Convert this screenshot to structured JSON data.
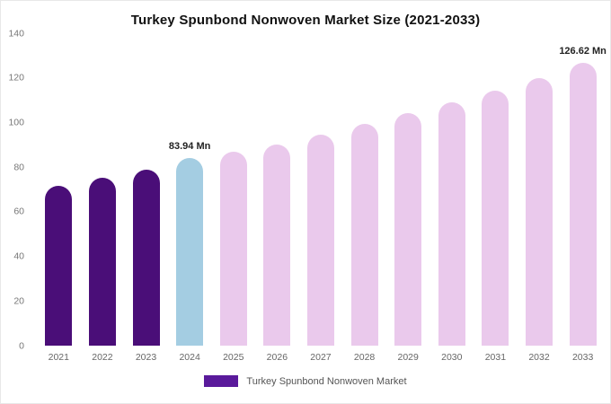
{
  "chart_data": {
    "type": "bar",
    "title": "Turkey Spunbond Nonwoven Market Size (2021-2033)",
    "categories": [
      "2021",
      "2022",
      "2023",
      "2024",
      "2025",
      "2026",
      "2027",
      "2028",
      "2029",
      "2030",
      "2031",
      "2032",
      "2033"
    ],
    "values": [
      71.8,
      75.2,
      78.9,
      83.94,
      86.9,
      90.3,
      94.6,
      99.2,
      104.2,
      109.1,
      114.3,
      119.9,
      126.62
    ],
    "point_labels": [
      "",
      "",
      "",
      "83.94 Mn",
      "",
      "",
      "",
      "",
      "",
      "",
      "",
      "",
      "126.62 Mn"
    ],
    "bar_colors": [
      "#4a0e78",
      "#4a0e78",
      "#4a0e78",
      "#a4cde2",
      "#eac9ec",
      "#eac9ec",
      "#eac9ec",
      "#eac9ec",
      "#eac9ec",
      "#eac9ec",
      "#eac9ec",
      "#eac9ec",
      "#eac9ec"
    ],
    "ylim": [
      0,
      140
    ],
    "yticks": [
      0,
      20,
      40,
      60,
      80,
      100,
      120,
      140
    ],
    "grid": "off",
    "legend_position": "bottom",
    "legend_label": "Turkey Spunbond Nonwoven Market",
    "legend_color": "#5a1a9b"
  }
}
